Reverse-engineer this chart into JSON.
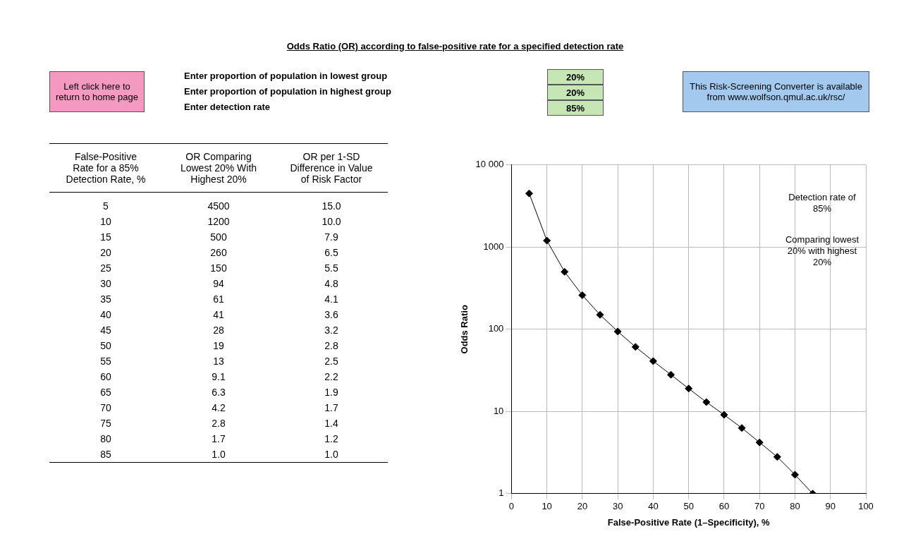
{
  "chart_data": [
    {
      "type": "other",
      "title": "Odds Ratio (OR)  according to false-positive rate for a specified detection rate",
      "annotations": [
        "Left click here to return to home page",
        "Enter proportion of population in lowest group",
        "Enter proportion of population in highest group",
        "Enter detection rate",
        "20%",
        "20%",
        "85%",
        "This Risk-Screening Converter is available from www.wolfson.qmul.ac.uk/rsc/"
      ]
    },
    {
      "type": "heatmap",
      "ylabel": "False-Positive Rate for a 85% Detection Rate, %",
      "categories": [
        "OR Comparing Lowest 20% With Highest 20%",
        "OR per 1-SD Difference in Value of Risk Factor"
      ],
      "y_categories": [
        "5",
        "10",
        "15",
        "20",
        "25",
        "30",
        "35",
        "40",
        "45",
        "50",
        "55",
        "60",
        "65",
        "70",
        "75",
        "80",
        "85"
      ],
      "cells": [
        [
          4500,
          15.0
        ],
        [
          1200,
          10.0
        ],
        [
          500,
          7.9
        ],
        [
          260,
          6.5
        ],
        [
          150,
          5.5
        ],
        [
          94,
          4.8
        ],
        [
          61,
          4.1
        ],
        [
          41,
          3.6
        ],
        [
          28,
          3.2
        ],
        [
          19,
          2.8
        ],
        [
          13,
          2.5
        ],
        [
          9.1,
          2.2
        ],
        [
          6.3,
          1.9
        ],
        [
          4.2,
          1.7
        ],
        [
          2.8,
          1.4
        ],
        [
          1.7,
          1.2
        ],
        [
          1.0,
          1.0
        ]
      ],
      "cell_labels": [
        [
          "4500",
          "15.0"
        ],
        [
          "1200",
          "10.0"
        ],
        [
          "500",
          "7.9"
        ],
        [
          "260",
          "6.5"
        ],
        [
          "150",
          "5.5"
        ],
        [
          "94",
          "4.8"
        ],
        [
          "61",
          "4.1"
        ],
        [
          "41",
          "3.6"
        ],
        [
          "28",
          "3.2"
        ],
        [
          "19",
          "2.8"
        ],
        [
          "13",
          "2.5"
        ],
        [
          "9.1",
          "2.2"
        ],
        [
          "6.3",
          "1.9"
        ],
        [
          "4.2",
          "1.7"
        ],
        [
          "2.8",
          "1.4"
        ],
        [
          "1.7",
          "1.2"
        ],
        [
          "1.0",
          "1.0"
        ]
      ]
    },
    {
      "type": "line",
      "xlabel": "False-Positive Rate (1–Specificity), %",
      "ylabel": "Odds Ratio",
      "x": [
        5,
        10,
        15,
        20,
        25,
        30,
        35,
        40,
        45,
        50,
        55,
        60,
        65,
        70,
        75,
        80,
        85
      ],
      "values": [
        4500,
        1200,
        500,
        260,
        150,
        94,
        61,
        41,
        28,
        19,
        13,
        9.1,
        6.3,
        4.2,
        2.8,
        1.7,
        1.0
      ],
      "color": "#000000",
      "marker": "diamond",
      "log": "y",
      "grid": true,
      "xlim": [
        0,
        100
      ],
      "xticks": [
        0,
        10,
        20,
        30,
        40,
        50,
        60,
        70,
        80,
        90,
        100
      ],
      "ylim": [
        1,
        10000
      ],
      "yticks": [
        1,
        10,
        100,
        1000,
        {
          "value": 10000,
          "label": "10 000"
        }
      ],
      "annotations": [
        "Detection rate of 85%",
        "Comparing lowest 20% with highest 20%"
      ]
    }
  ]
}
